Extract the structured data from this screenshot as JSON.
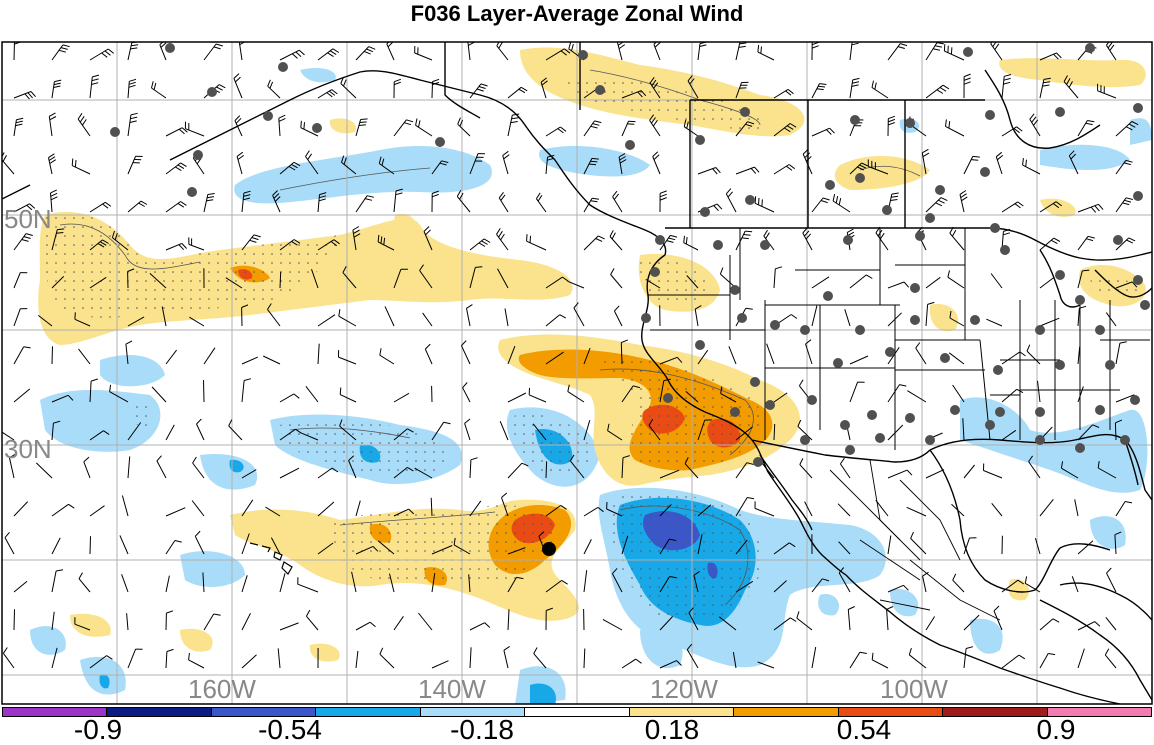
{
  "title": "F036 Layer-Average Zonal Wind",
  "lat_labels": [
    "50N",
    "30N"
  ],
  "lon_labels": [
    "160W",
    "140W",
    "120W",
    "100W"
  ],
  "colorbar": {
    "colors": [
      "#9b35c8",
      "#0c1c82",
      "#3a56c8",
      "#18a8e8",
      "#a8dcf8",
      "#ffffff",
      "#fae38c",
      "#f39c00",
      "#e84c14",
      "#a01c1c",
      "#f07cb0"
    ],
    "labels": [
      "-0.9",
      "-0.54",
      "-0.18",
      "0.18",
      "0.54",
      "0.9"
    ]
  },
  "map": {
    "land_line_color": "#000000",
    "station_color": "#505050",
    "highlight_station_color": "#000000"
  }
}
